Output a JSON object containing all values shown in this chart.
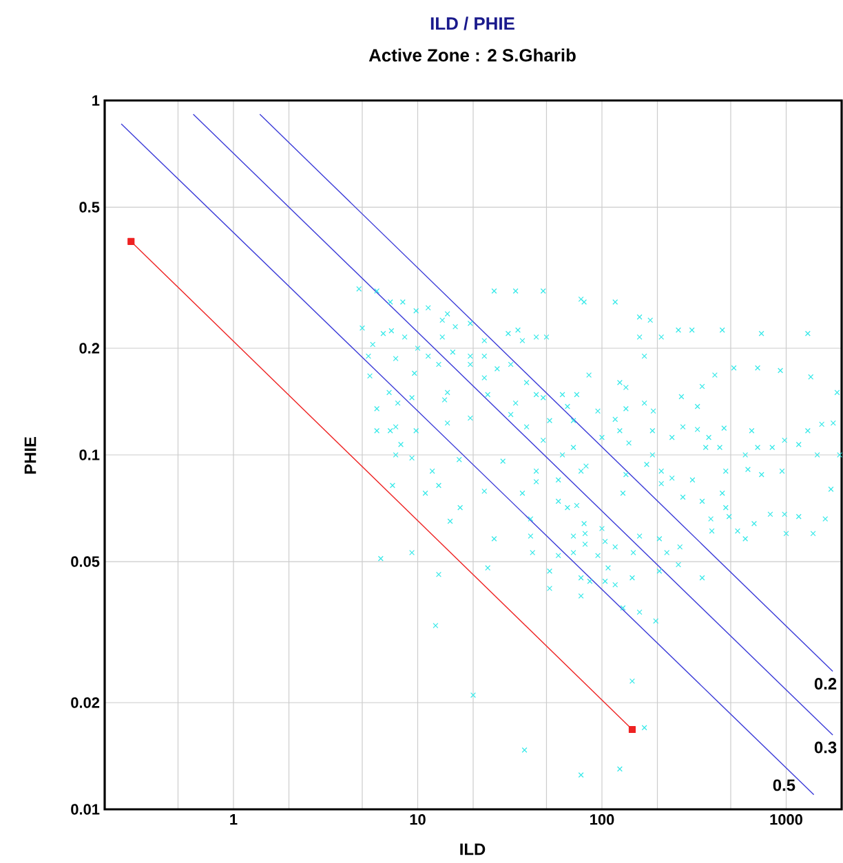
{
  "chart_data": {
    "type": "scatter",
    "title": "ILD / PHIE",
    "subtitle": "Active Zone : 2  S.Gharib",
    "xlabel": "ILD",
    "ylabel": "PHIE",
    "log": "xy",
    "grid": true,
    "xlim": [
      0.2,
      2000
    ],
    "ylim": [
      0.01,
      1
    ],
    "xticks": [
      {
        "value": 0.5,
        "label": null
      },
      1,
      {
        "value": 2,
        "label": null
      },
      {
        "value": 5,
        "label": null
      },
      10,
      {
        "value": 20,
        "label": null
      },
      {
        "value": 50,
        "label": null
      },
      100,
      {
        "value": 200,
        "label": null
      },
      {
        "value": 500,
        "label": null
      },
      1000
    ],
    "yticks": [
      0.01,
      0.02,
      0.05,
      0.1,
      0.2,
      0.5,
      1
    ],
    "series": [
      {
        "color": "#33e8e8",
        "marker": "cross",
        "x": [
          4.8,
          6.0,
          7.1,
          8.3,
          9.8,
          11.4,
          13.6,
          16,
          19.3,
          14.5,
          26,
          34,
          48,
          77,
          5,
          6.5,
          7.2,
          8.5,
          5.7,
          5.4,
          7.6,
          10,
          11.4,
          13.6,
          15.5,
          19.3,
          23,
          23,
          31,
          35,
          37,
          44,
          50,
          13,
          19.3,
          27,
          32,
          39,
          34,
          44,
          48,
          23,
          24,
          14.5,
          14,
          5.5,
          9.6,
          7,
          7.8,
          9.3,
          6,
          19.3,
          32,
          39,
          52,
          61,
          73,
          65,
          70,
          6,
          7.1,
          7.6,
          9.8,
          14.5,
          8.1,
          7.6,
          9.3,
          7.3,
          12,
          13,
          11,
          17,
          15,
          16.8,
          23,
          29,
          37,
          44,
          44,
          58,
          61,
          48,
          70,
          77,
          58,
          65,
          73,
          41,
          80,
          80,
          118,
          160,
          183,
          160,
          210,
          260,
          308,
          450,
          734,
          1310,
          170,
          85,
          125,
          135,
          270,
          350,
          330,
          410,
          520,
          700,
          930,
          1360,
          1890,
          95,
          135,
          170,
          190,
          118,
          188,
          125,
          100,
          140,
          188,
          240,
          275,
          330,
          380,
          460,
          366,
          436,
          600,
          650,
          700,
          840,
          980,
          1170,
          1310,
          1560,
          1800,
          1950,
          1475,
          82,
          135,
          175,
          210,
          240,
          310,
          470,
          620,
          735,
          950,
          130,
          210,
          275,
          350,
          450,
          470,
          490,
          820,
          980,
          1170,
          1630,
          1750,
          390,
          670,
          6.3,
          9.3,
          13,
          12.5,
          20,
          24,
          26,
          41,
          42,
          52,
          52,
          58,
          70,
          70,
          81,
          81,
          77,
          77,
          86,
          95,
          100,
          104,
          108,
          104,
          118,
          118,
          146,
          148,
          160,
          130,
          160,
          196,
          205,
          205,
          225,
          260,
          265,
          350,
          395,
          545,
          600,
          1000,
          1400,
          146,
          170,
          38,
          77,
          125
        ],
        "values": [
          0.294,
          0.29,
          0.27,
          0.27,
          0.255,
          0.26,
          0.24,
          0.23,
          0.235,
          0.25,
          0.29,
          0.29,
          0.29,
          0.275,
          0.228,
          0.22,
          0.224,
          0.215,
          0.205,
          0.19,
          0.187,
          0.2,
          0.19,
          0.215,
          0.195,
          0.19,
          0.19,
          0.21,
          0.22,
          0.225,
          0.21,
          0.215,
          0.215,
          0.18,
          0.18,
          0.175,
          0.18,
          0.16,
          0.14,
          0.148,
          0.145,
          0.165,
          0.148,
          0.15,
          0.143,
          0.167,
          0.17,
          0.15,
          0.14,
          0.145,
          0.135,
          0.127,
          0.13,
          0.12,
          0.125,
          0.148,
          0.148,
          0.137,
          0.125,
          0.117,
          0.117,
          0.12,
          0.117,
          0.123,
          0.107,
          0.1,
          0.098,
          0.082,
          0.09,
          0.082,
          0.078,
          0.071,
          0.065,
          0.097,
          0.079,
          0.096,
          0.078,
          0.09,
          0.084,
          0.085,
          0.1,
          0.11,
          0.105,
          0.09,
          0.074,
          0.071,
          0.072,
          0.066,
          0.064,
          0.27,
          0.27,
          0.245,
          0.24,
          0.215,
          0.215,
          0.225,
          0.225,
          0.225,
          0.22,
          0.22,
          0.19,
          0.168,
          0.16,
          0.155,
          0.146,
          0.156,
          0.137,
          0.168,
          0.176,
          0.176,
          0.173,
          0.166,
          0.15,
          0.133,
          0.135,
          0.14,
          0.133,
          0.126,
          0.117,
          0.117,
          0.112,
          0.108,
          0.1,
          0.112,
          0.12,
          0.118,
          0.112,
          0.119,
          0.105,
          0.105,
          0.1,
          0.117,
          0.105,
          0.105,
          0.11,
          0.107,
          0.117,
          0.122,
          0.123,
          0.1,
          0.1,
          0.093,
          0.088,
          0.094,
          0.09,
          0.086,
          0.085,
          0.09,
          0.091,
          0.088,
          0.09,
          0.078,
          0.083,
          0.076,
          0.074,
          0.078,
          0.071,
          0.067,
          0.068,
          0.068,
          0.067,
          0.066,
          0.08,
          0.066,
          0.064,
          0.051,
          0.053,
          0.046,
          0.033,
          0.021,
          0.048,
          0.058,
          0.059,
          0.053,
          0.047,
          0.042,
          0.052,
          0.059,
          0.053,
          0.06,
          0.056,
          0.045,
          0.04,
          0.044,
          0.052,
          0.062,
          0.057,
          0.048,
          0.044,
          0.043,
          0.055,
          0.045,
          0.053,
          0.059,
          0.037,
          0.036,
          0.034,
          0.047,
          0.058,
          0.053,
          0.049,
          0.055,
          0.045,
          0.061,
          0.061,
          0.058,
          0.06,
          0.06,
          0.023,
          0.017,
          0.0147,
          0.0125,
          0.013
        ]
      },
      {
        "type": "line",
        "color": "#ee2222",
        "marker": "square",
        "x": [
          0.278,
          146
        ],
        "values": [
          0.4,
          0.0168
        ]
      },
      {
        "type": "line",
        "color": "#3a3ad8",
        "marker": "none",
        "x": [
          1.39,
          1790
        ],
        "values": [
          0.914,
          0.0245
        ]
      },
      {
        "type": "line",
        "color": "#3a3ad8",
        "marker": "none",
        "x": [
          0.605,
          1790
        ],
        "values": [
          0.914,
          0.0162
        ]
      },
      {
        "type": "line",
        "color": "#3a3ad8",
        "marker": "none",
        "x": [
          0.246,
          1413
        ],
        "values": [
          0.859,
          0.011
        ]
      }
    ],
    "annotations": [
      "0.2",
      "0.3",
      "0.5"
    ]
  }
}
